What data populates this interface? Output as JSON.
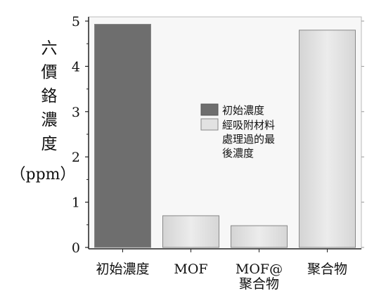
{
  "chart_data": {
    "type": "bar",
    "ylabel": [
      "六",
      "價",
      "鉻",
      "濃",
      "度"
    ],
    "ylabel_unit": "（ppm）",
    "ylim": [
      0,
      5
    ],
    "yticks": [
      "0",
      "1",
      "2",
      "3",
      "4",
      "5"
    ],
    "categories": [
      {
        "lines": [
          "初始濃度"
        ]
      },
      {
        "lines": [
          "MOF"
        ]
      },
      {
        "lines": [
          "MOF@",
          "聚合物"
        ]
      },
      {
        "lines": [
          "聚合物"
        ]
      }
    ],
    "values": [
      4.93,
      0.7,
      0.48,
      4.8
    ],
    "bar_series": [
      0,
      1,
      1,
      1
    ],
    "series": [
      {
        "name": "初始濃度",
        "color": "#6e6e6e"
      },
      {
        "name": [
          "經吸附材料",
          "處理過的最",
          "後濃度"
        ],
        "color": "#e2e2e2"
      }
    ],
    "grid": false,
    "legend_position": "center"
  }
}
